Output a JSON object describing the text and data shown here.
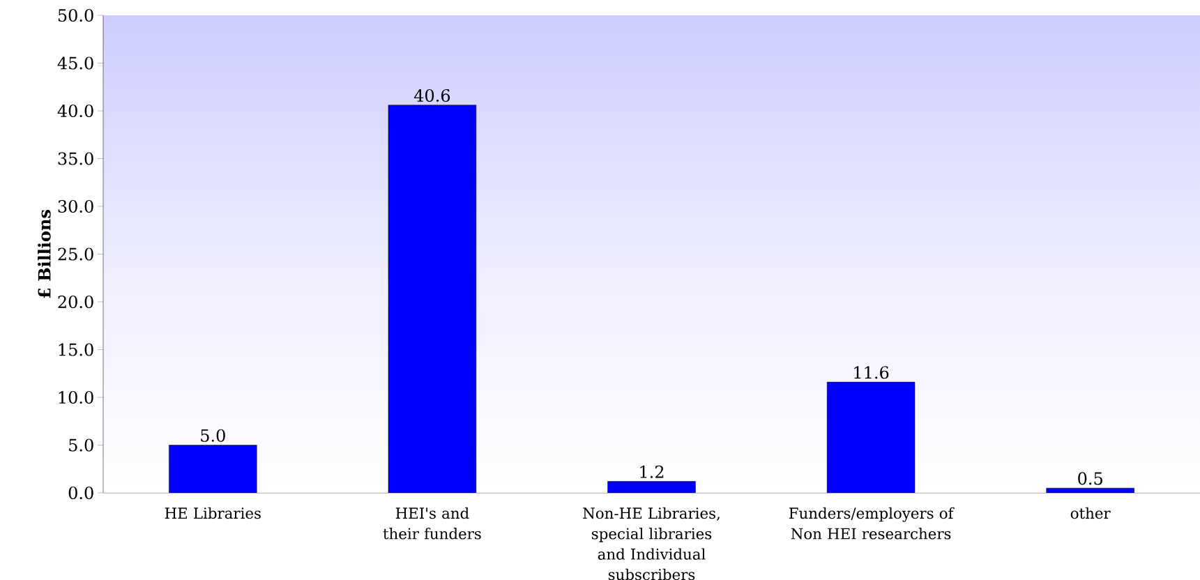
{
  "chart_data": {
    "type": "bar",
    "ylabel": "£ Billions",
    "categories": [
      "HE Libraries",
      "HEI's and their funders",
      "Non-HE Libraries, special libraries and Individual subscribers",
      "Funders/employers of Non HEI researchers",
      "other"
    ],
    "values": [
      5.0,
      40.6,
      1.2,
      11.6,
      0.5
    ],
    "value_labels": [
      "5.0",
      "40.6",
      "1.2",
      "11.6",
      "0.5"
    ],
    "color": "#0000ff",
    "ylim": [
      0,
      50
    ],
    "yticks": [
      {
        "value": 0,
        "label": "0.0"
      },
      {
        "value": 5,
        "label": "5.0"
      },
      {
        "value": 10,
        "label": "10.0"
      },
      {
        "value": 15,
        "label": "15.0"
      },
      {
        "value": 20,
        "label": "20.0"
      },
      {
        "value": 25,
        "label": "25.0"
      },
      {
        "value": 30,
        "label": "30.0"
      },
      {
        "value": 35,
        "label": "35.0"
      },
      {
        "value": 40,
        "label": "40.0"
      },
      {
        "value": 45,
        "label": "45.0"
      },
      {
        "value": 50,
        "label": "50.0"
      }
    ],
    "grid": false
  }
}
